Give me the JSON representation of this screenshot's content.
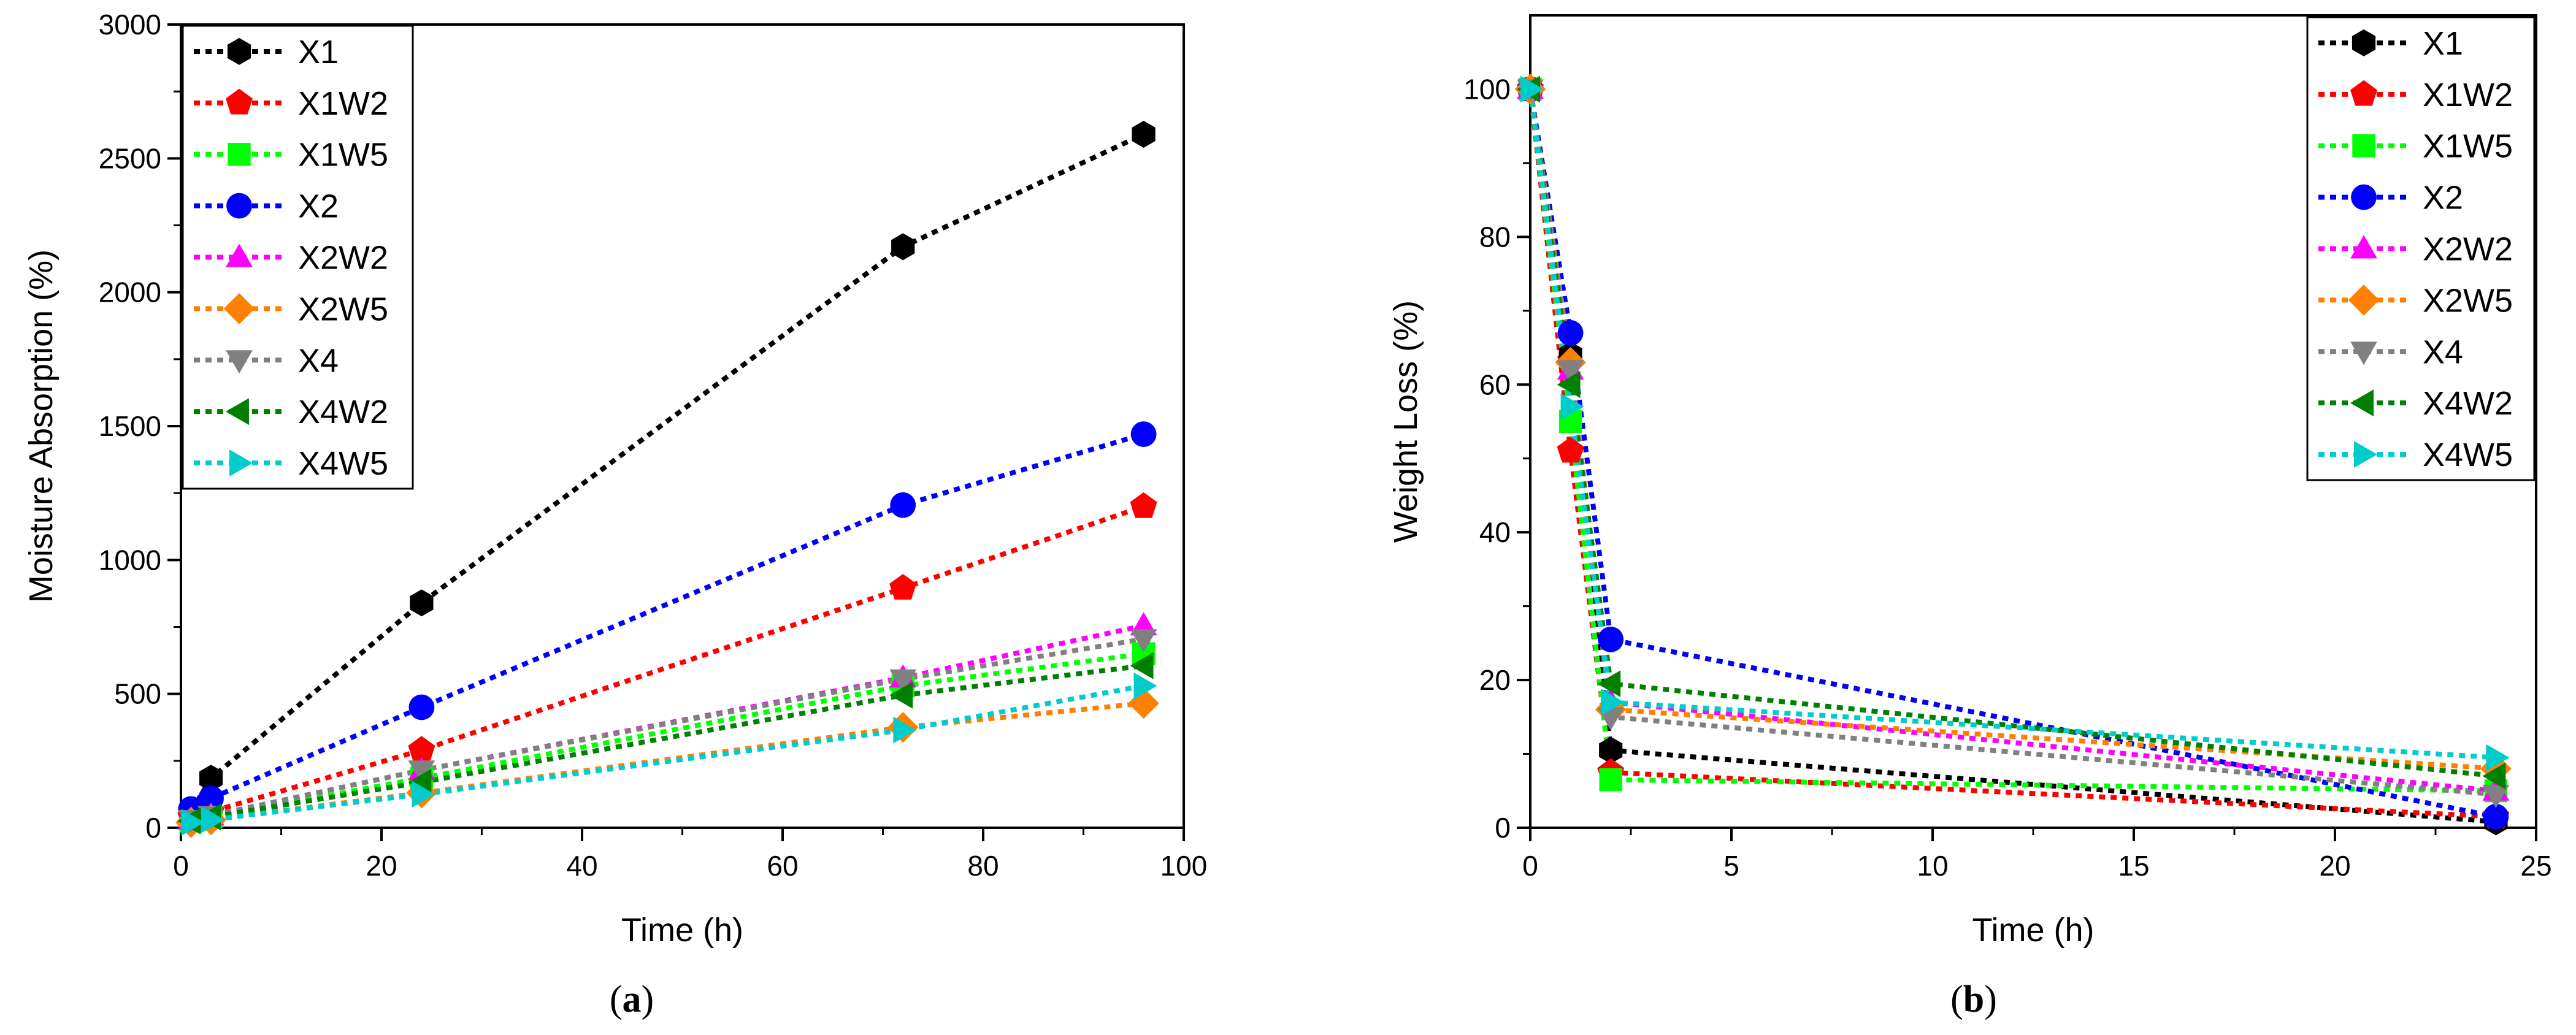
{
  "chart_data": [
    {
      "type": "line",
      "panel": "a",
      "caption_open": "(",
      "caption_letter": "a",
      "caption_close": ")",
      "xlabel": "Time (h)",
      "ylabel": "Moisture Absorption (%)",
      "xlim": [
        0,
        100
      ],
      "ylim": [
        0,
        3000
      ],
      "xticks": [
        0,
        20,
        40,
        60,
        80,
        100
      ],
      "yticks": [
        0,
        500,
        1000,
        1500,
        2000,
        2500,
        3000
      ],
      "legend_position": "top-left",
      "series": [
        {
          "name": "X1",
          "color": "#000000",
          "marker": "hexagon",
          "x": [
            1,
            3,
            24,
            72,
            96
          ],
          "y": [
            60,
            185,
            840,
            2170,
            2590
          ]
        },
        {
          "name": "X1W2",
          "color": "#ff0000",
          "marker": "pentagon",
          "x": [
            1,
            3,
            24,
            72,
            96
          ],
          "y": [
            40,
            60,
            290,
            895,
            1200
          ]
        },
        {
          "name": "X1W5",
          "color": "#00ff00",
          "marker": "square",
          "x": [
            1,
            3,
            24,
            72,
            96
          ],
          "y": [
            25,
            40,
            185,
            530,
            650
          ]
        },
        {
          "name": "X2",
          "color": "#0000ff",
          "marker": "circle",
          "x": [
            1,
            3,
            24,
            72,
            96
          ],
          "y": [
            70,
            110,
            450,
            1205,
            1470
          ]
        },
        {
          "name": "X2W2",
          "color": "#ff00ff",
          "marker": "triangle-up",
          "x": [
            1,
            3,
            24,
            72,
            96
          ],
          "y": [
            30,
            45,
            215,
            560,
            755
          ]
        },
        {
          "name": "X2W5",
          "color": "#ff8000",
          "marker": "diamond",
          "x": [
            1,
            3,
            24,
            72,
            96
          ],
          "y": [
            20,
            30,
            130,
            375,
            465
          ]
        },
        {
          "name": "X4",
          "color": "#808080",
          "marker": "triangle-down",
          "x": [
            1,
            3,
            24,
            72,
            96
          ],
          "y": [
            30,
            45,
            215,
            555,
            705
          ]
        },
        {
          "name": "X4W2",
          "color": "#008000",
          "marker": "triangle-left",
          "x": [
            1,
            3,
            24,
            72,
            96
          ],
          "y": [
            25,
            40,
            170,
            495,
            605
          ]
        },
        {
          "name": "X4W5",
          "color": "#00cccc",
          "marker": "triangle-right",
          "x": [
            1,
            3,
            24,
            72,
            96
          ],
          "y": [
            20,
            30,
            125,
            365,
            530
          ]
        }
      ]
    },
    {
      "type": "line",
      "panel": "b",
      "caption_open": "(",
      "caption_letter": "b",
      "caption_close": ")",
      "xlabel": "Time (h)",
      "ylabel": "Weight Loss (%)",
      "xlim": [
        0,
        25
      ],
      "ylim": [
        0,
        110
      ],
      "xticks": [
        0,
        5,
        10,
        15,
        20,
        25
      ],
      "yticks": [
        0,
        20,
        40,
        60,
        80,
        100
      ],
      "legend_position": "top-right",
      "series": [
        {
          "name": "X1",
          "color": "#000000",
          "marker": "hexagon",
          "x": [
            0,
            1,
            2,
            24
          ],
          "y": [
            100,
            64,
            10.5,
            0.8
          ]
        },
        {
          "name": "X1W2",
          "color": "#ff0000",
          "marker": "pentagon",
          "x": [
            0,
            1,
            2,
            24
          ],
          "y": [
            100,
            51,
            7.5,
            1.5
          ]
        },
        {
          "name": "X1W5",
          "color": "#00ff00",
          "marker": "square",
          "x": [
            0,
            1,
            2,
            24
          ],
          "y": [
            100,
            55,
            6.5,
            5
          ]
        },
        {
          "name": "X2",
          "color": "#0000ff",
          "marker": "circle",
          "x": [
            0,
            1,
            2,
            24
          ],
          "y": [
            100,
            67,
            25.5,
            1.5
          ]
        },
        {
          "name": "X2W2",
          "color": "#ff00ff",
          "marker": "triangle-up",
          "x": [
            0,
            1,
            2,
            24
          ],
          "y": [
            100,
            62,
            17,
            5
          ]
        },
        {
          "name": "X2W5",
          "color": "#ff8000",
          "marker": "diamond",
          "x": [
            0,
            1,
            2,
            24
          ],
          "y": [
            100,
            63,
            16,
            8
          ]
        },
        {
          "name": "X4",
          "color": "#808080",
          "marker": "triangle-down",
          "x": [
            0,
            1,
            2,
            24
          ],
          "y": [
            100,
            62,
            15,
            4.5
          ]
        },
        {
          "name": "X4W2",
          "color": "#008000",
          "marker": "triangle-left",
          "x": [
            0,
            1,
            2,
            24
          ],
          "y": [
            100,
            60,
            19.5,
            7
          ]
        },
        {
          "name": "X4W5",
          "color": "#00cccc",
          "marker": "triangle-right",
          "x": [
            0,
            1,
            2,
            24
          ],
          "y": [
            100,
            57,
            17,
            9.5
          ]
        }
      ]
    }
  ]
}
